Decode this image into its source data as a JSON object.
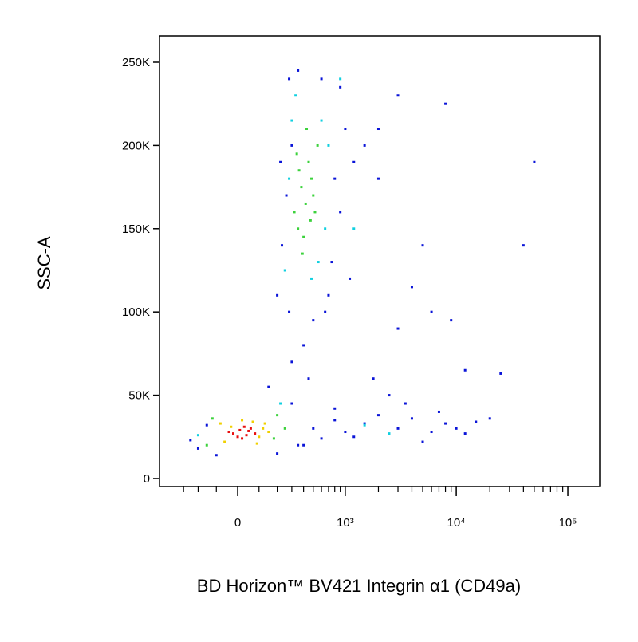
{
  "chart_data": {
    "type": "scatter",
    "x_label": "BD Horizon™ BV421 Integrin α1 (CD49a)",
    "y_label": "SSC-A",
    "x_scale": "biexponential",
    "xlim": [
      -530,
      193000
    ],
    "ylim": [
      -4800,
      265800
    ],
    "xticks": [
      0,
      {
        "value": 1000,
        "label": "10³"
      },
      {
        "value": 10000,
        "label": "10⁴"
      },
      {
        "value": 100000,
        "label": "10⁵"
      }
    ],
    "xminorticks": [
      -300,
      -200,
      -100,
      100,
      200,
      300,
      400,
      500,
      600,
      700,
      800,
      900,
      2000,
      3000,
      4000,
      5000,
      6000,
      7000,
      8000,
      9000,
      20000,
      30000,
      40000,
      50000,
      60000,
      70000,
      80000,
      90000
    ],
    "yticks": [
      0,
      {
        "value": 50000,
        "label": "50K"
      },
      {
        "value": 100000,
        "label": "100K"
      },
      {
        "value": 150000,
        "label": "150K"
      },
      {
        "value": 200000,
        "label": "200K"
      },
      {
        "value": 250000,
        "label": "250K"
      }
    ],
    "series": [
      {
        "color": "#0a14d8",
        "x": [
          200,
          230,
          260,
          300,
          700,
          800,
          900,
          1000,
          1200,
          280,
          350,
          600,
          650,
          750,
          220,
          900,
          1500,
          2000,
          400,
          500,
          450,
          300,
          280,
          1100,
          500,
          800,
          1000,
          1500,
          2000,
          3000,
          4000,
          6000,
          8000,
          10000,
          15000,
          20000,
          800,
          1200,
          3500,
          5000,
          7000,
          600,
          400,
          2500,
          1800,
          12000,
          -200,
          -250,
          -150,
          200,
          300,
          350,
          150,
          -100,
          3000,
          5000,
          8000,
          40000,
          50000,
          2000,
          3000,
          6000,
          12000,
          9000,
          4000,
          25000
        ],
        "y": [
          110000,
          140000,
          170000,
          200000,
          110000,
          180000,
          160000,
          210000,
          190000,
          240000,
          245000,
          240000,
          100000,
          130000,
          190000,
          235000,
          200000,
          180000,
          80000,
          95000,
          60000,
          70000,
          100000,
          120000,
          30000,
          35000,
          28000,
          33000,
          38000,
          30000,
          36000,
          28000,
          33000,
          30000,
          34000,
          36000,
          42000,
          25000,
          45000,
          22000,
          40000,
          24000,
          20000,
          50000,
          60000,
          27000,
          18000,
          23000,
          32000,
          15000,
          45000,
          20000,
          55000,
          14000,
          230000,
          140000,
          225000,
          140000,
          190000,
          210000,
          90000,
          100000,
          65000,
          95000,
          115000,
          63000
        ]
      },
      {
        "color": "#10d0e0",
        "x": [
          250,
          300,
          600,
          650,
          280,
          700,
          900,
          560,
          330,
          480,
          1500,
          2500,
          -200,
          220,
          1200
        ],
        "y": [
          125000,
          215000,
          215000,
          150000,
          180000,
          200000,
          240000,
          130000,
          230000,
          120000,
          32000,
          27000,
          26000,
          45000,
          150000
        ]
      },
      {
        "color": "#3cd23c",
        "x": [
          320,
          380,
          450,
          500,
          350,
          420,
          480,
          550,
          400,
          360,
          470,
          430,
          390,
          520,
          340,
          -150,
          200,
          180,
          -120,
          250
        ],
        "y": [
          160000,
          175000,
          190000,
          170000,
          150000,
          165000,
          180000,
          200000,
          145000,
          185000,
          155000,
          210000,
          135000,
          160000,
          195000,
          20000,
          38000,
          24000,
          36000,
          30000
        ]
      },
      {
        "color": "#f0d000",
        "x": [
          -80,
          100,
          120,
          -60,
          70,
          150,
          -30,
          90,
          20,
          130
        ],
        "y": [
          33000,
          25000,
          30000,
          22000,
          34000,
          28000,
          31000,
          21000,
          35000,
          33000
        ]
      },
      {
        "color": "#e81010",
        "x": [
          -20,
          10,
          40,
          60,
          0,
          30,
          -40,
          80,
          20,
          50
        ],
        "y": [
          27000,
          29000,
          26000,
          30000,
          25000,
          31000,
          28000,
          27000,
          24000,
          28500
        ]
      }
    ]
  }
}
